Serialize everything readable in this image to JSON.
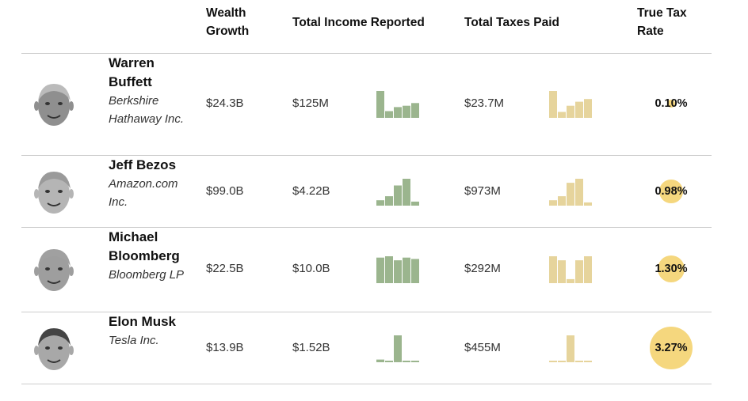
{
  "headers": {
    "wealth_growth": "Wealth Growth",
    "total_income": "Total Income Reported",
    "total_taxes": "Total Taxes Paid",
    "true_tax_rate": "True Tax Rate"
  },
  "colors": {
    "income_bars": "#9bb58e",
    "tax_bars": "#e6d49c",
    "rate_circle": "#f5d77e",
    "divider": "#cccccc"
  },
  "chart_data": {
    "type": "table",
    "columns": [
      "Wealth Growth",
      "Total Income Reported",
      "Total Taxes Paid",
      "True Tax Rate"
    ],
    "rows": [
      {
        "name": "Warren Buffett",
        "company": "Berkshire Hathaway Inc.",
        "wealth_growth": "$24.3B",
        "total_income": "$125M",
        "total_taxes": "$23.7M",
        "true_tax_rate": "0.10%",
        "true_tax_rate_value": 0.1,
        "income_bars": [
          1.0,
          0.25,
          0.4,
          0.45,
          0.55
        ],
        "tax_bars": [
          1.0,
          0.22,
          0.45,
          0.6,
          0.7
        ]
      },
      {
        "name": "Jeff Bezos",
        "company": "Amazon.com Inc.",
        "wealth_growth": "$99.0B",
        "total_income": "$4.22B",
        "total_taxes": "$973M",
        "true_tax_rate": "0.98%",
        "true_tax_rate_value": 0.98,
        "income_bars": [
          0.2,
          0.35,
          0.75,
          1.0,
          0.15
        ],
        "tax_bars": [
          0.2,
          0.35,
          0.85,
          1.0,
          0.12
        ]
      },
      {
        "name": "Michael Bloomberg",
        "company": "Bloomberg LP",
        "wealth_growth": "$22.5B",
        "total_income": "$10.0B",
        "total_taxes": "$292M",
        "true_tax_rate": "1.30%",
        "true_tax_rate_value": 1.3,
        "income_bars": [
          0.95,
          1.0,
          0.85,
          0.95,
          0.9
        ],
        "tax_bars": [
          1.0,
          0.85,
          0.15,
          0.85,
          1.0
        ]
      },
      {
        "name": "Elon Musk",
        "company": "Tesla Inc.",
        "wealth_growth": "$13.9B",
        "total_income": "$1.52B",
        "total_taxes": "$455M",
        "true_tax_rate": "3.27%",
        "true_tax_rate_value": 3.27,
        "income_bars": [
          0.1,
          0.05,
          1.0,
          0.04,
          0.04
        ],
        "tax_bars": [
          0.05,
          0.04,
          1.0,
          0.04,
          0.04
        ]
      }
    ]
  }
}
